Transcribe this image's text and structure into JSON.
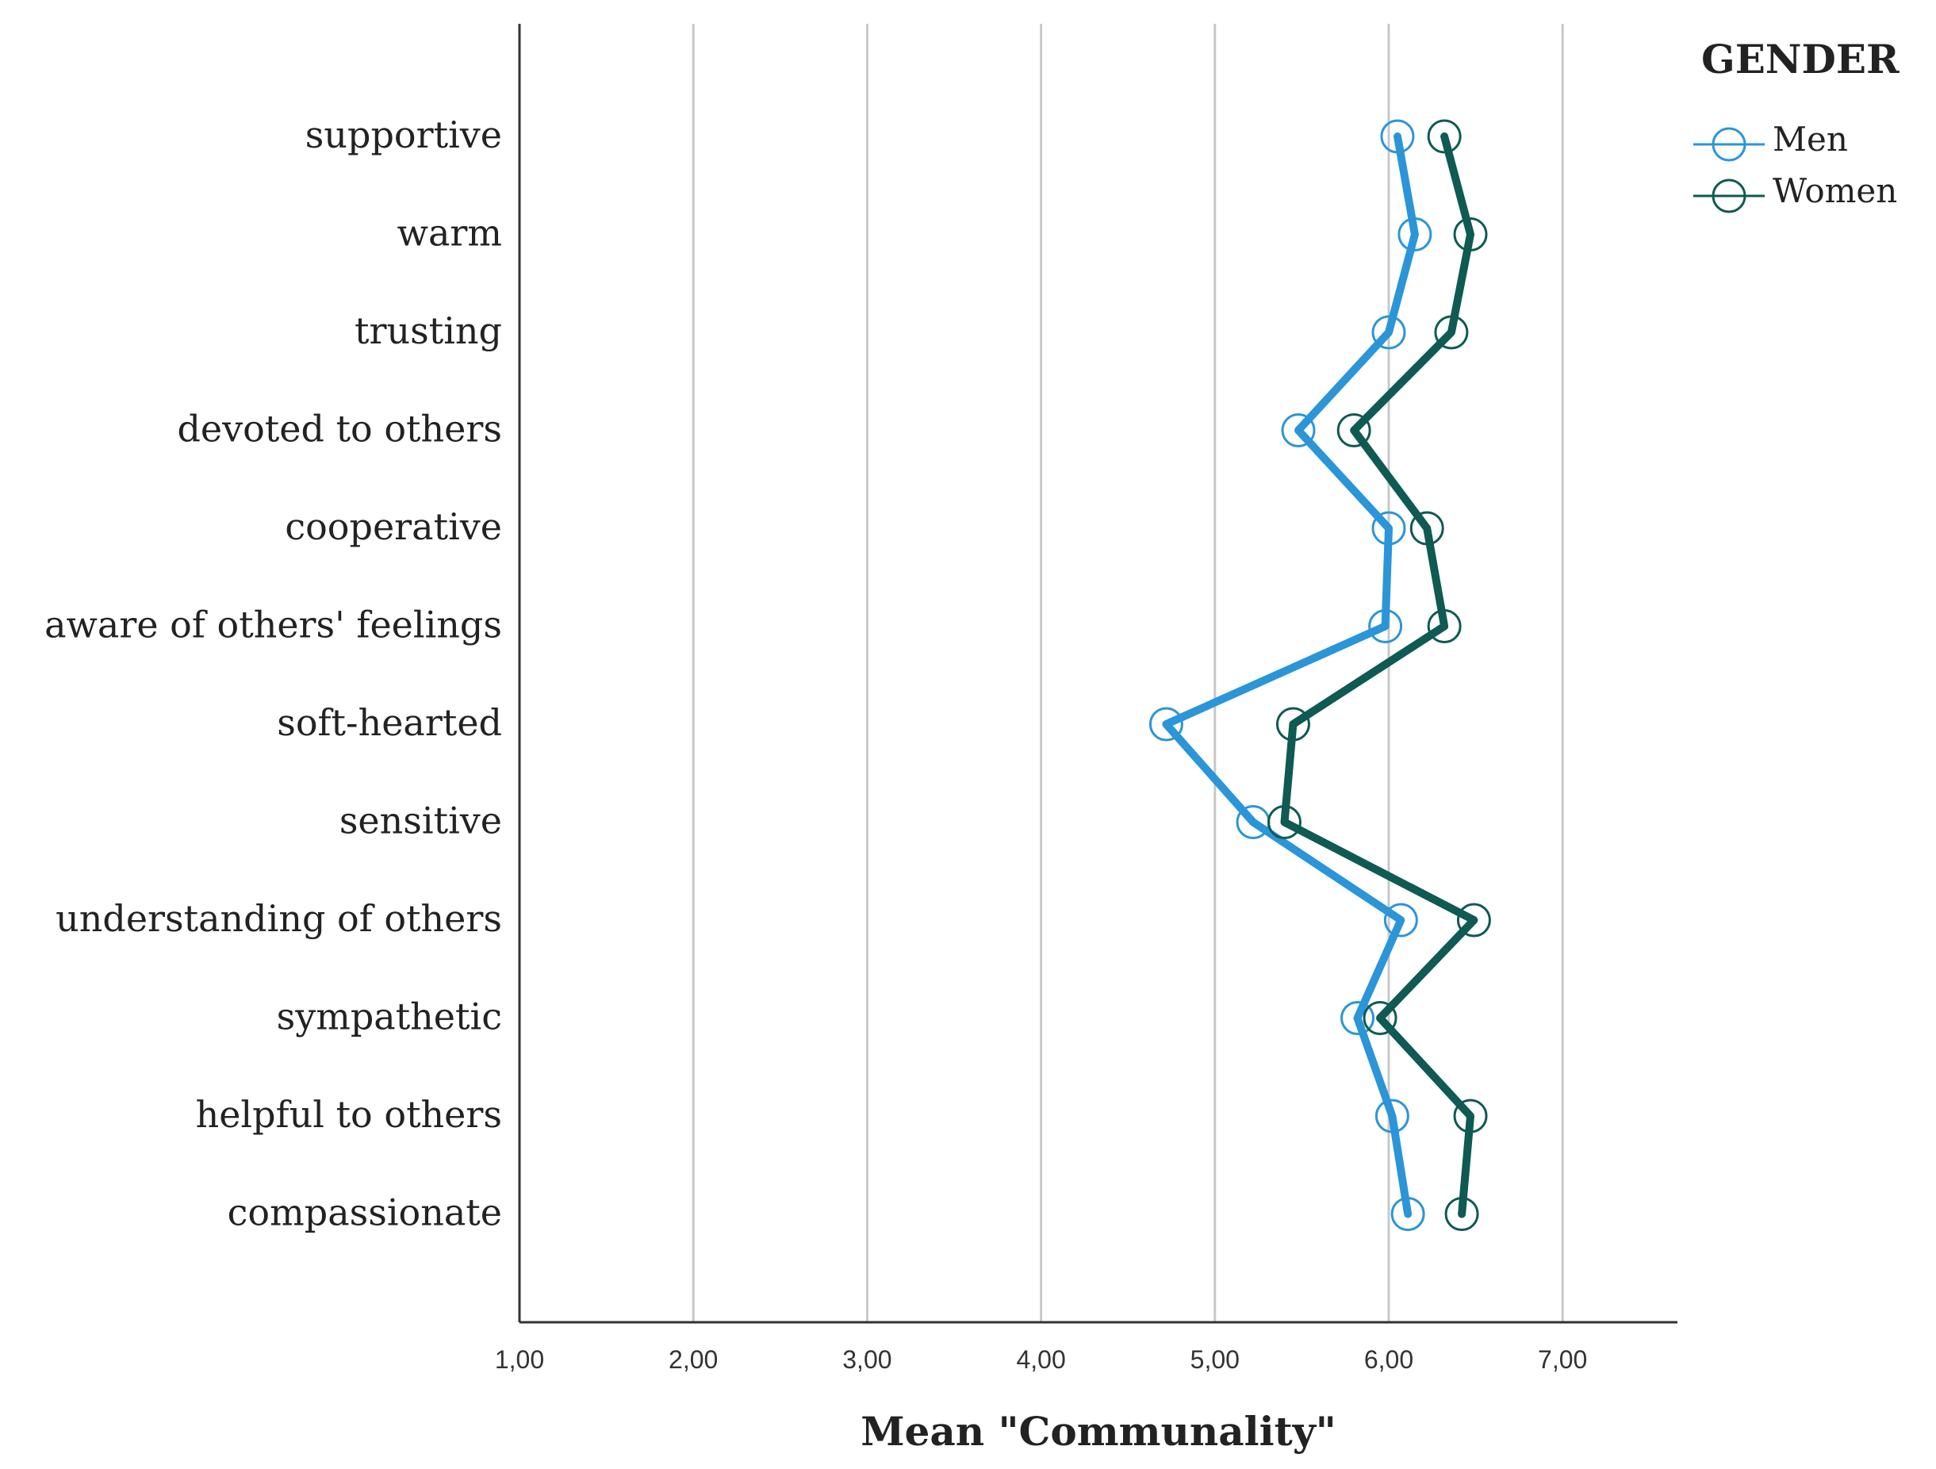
{
  "chart_data": {
    "type": "line",
    "orientation": "horizontal",
    "xlabel": "Mean \"Communality\"",
    "xlim": [
      1.0,
      7.6
    ],
    "xticks": [
      1.0,
      2.0,
      3.0,
      4.0,
      5.0,
      6.0,
      7.0
    ],
    "xtick_labels": [
      "1,00",
      "2,00",
      "3,00",
      "4,00",
      "5,00",
      "6,00",
      "7,00"
    ],
    "grid": "vertical",
    "categories": [
      "supportive",
      "warm",
      "trusting",
      "devoted to others",
      "cooperative",
      "aware of others' feelings",
      "soft-hearted",
      "sensitive",
      "understanding of others",
      "sympathetic",
      "helpful to others",
      "compassionate"
    ],
    "legend": {
      "title": "GENDER",
      "placement": "top-right"
    },
    "series": [
      {
        "name": "Men",
        "color": "#2b95d8",
        "values": [
          6.05,
          6.15,
          6.0,
          5.48,
          6.0,
          5.98,
          4.72,
          5.22,
          6.07,
          5.82,
          6.02,
          6.11
        ]
      },
      {
        "name": "Women",
        "color": "#0f5a52",
        "values": [
          6.32,
          6.47,
          6.36,
          5.8,
          6.22,
          6.32,
          5.45,
          5.4,
          6.49,
          5.95,
          6.47,
          6.42
        ]
      }
    ]
  }
}
